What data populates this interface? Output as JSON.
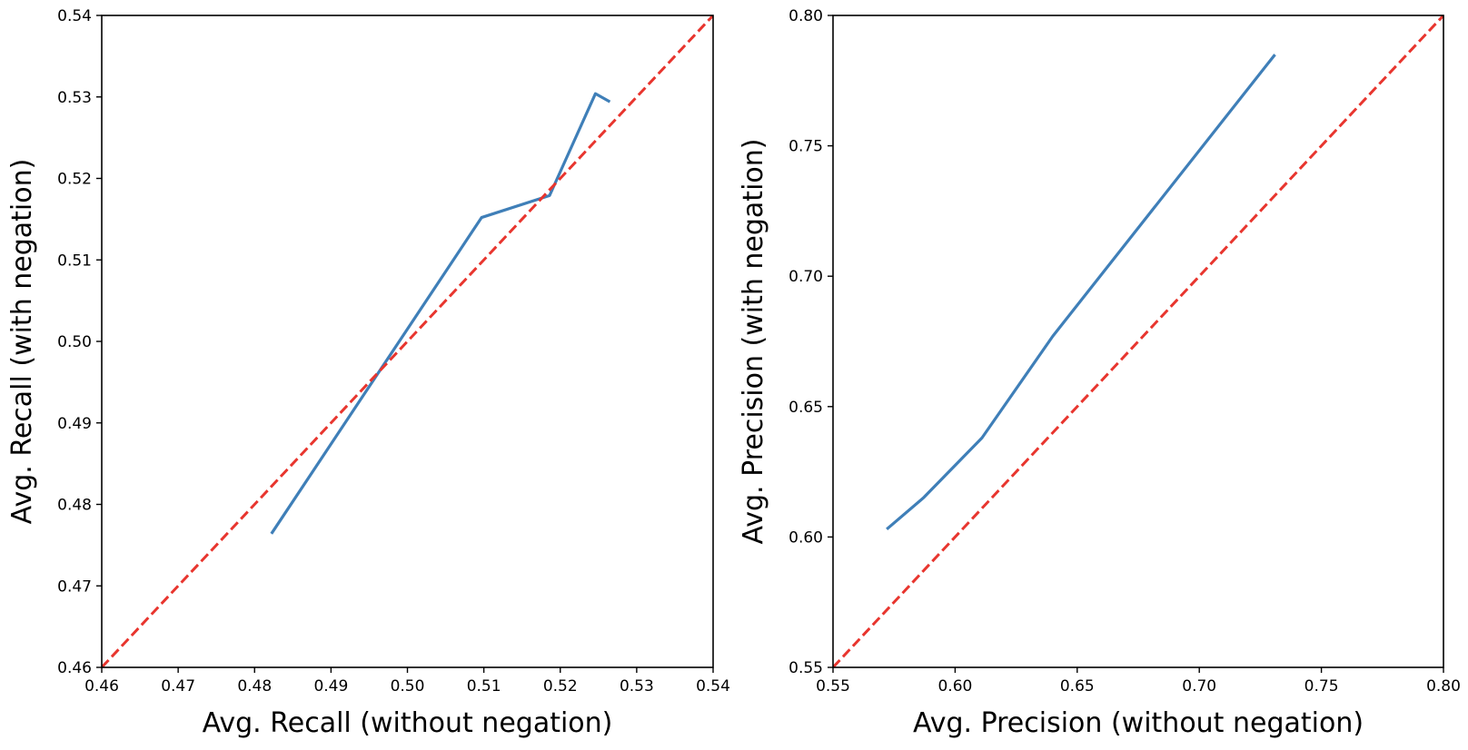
{
  "chart_data": [
    {
      "type": "line",
      "xlabel": "Avg. Recall (without negation)",
      "ylabel": "Avg. Recall (with negation)",
      "xlim": [
        0.46,
        0.54
      ],
      "ylim": [
        0.46,
        0.54
      ],
      "xticks": [
        "0.46",
        "0.47",
        "0.48",
        "0.49",
        "0.50",
        "0.51",
        "0.52",
        "0.53",
        "0.54"
      ],
      "yticks": [
        "0.46",
        "0.47",
        "0.48",
        "0.49",
        "0.50",
        "0.51",
        "0.52",
        "0.53",
        "0.54"
      ],
      "grid": false,
      "series": [
        {
          "color": "#3f7fb8",
          "style": "solid",
          "x": [
            0.4822,
            0.5097,
            0.5186,
            0.5246,
            0.5265
          ],
          "y": [
            0.4764,
            0.5152,
            0.5179,
            0.5304,
            0.5294
          ]
        },
        {
          "color": "#e8352e",
          "style": "dashed",
          "x": [
            0.46,
            0.54
          ],
          "y": [
            0.46,
            0.54
          ]
        }
      ]
    },
    {
      "type": "line",
      "xlabel": "Avg. Precision (without negation)",
      "ylabel": "Avg. Precision (with negation)",
      "xlim": [
        0.55,
        0.8
      ],
      "ylim": [
        0.55,
        0.8
      ],
      "xticks": [
        "0.55",
        "0.60",
        "0.65",
        "0.70",
        "0.75",
        "0.80"
      ],
      "yticks": [
        "0.55",
        "0.60",
        "0.65",
        "0.70",
        "0.75",
        "0.80"
      ],
      "grid": false,
      "series": [
        {
          "color": "#3f7fb8",
          "style": "solid",
          "x": [
            0.572,
            0.587,
            0.611,
            0.64,
            0.731
          ],
          "y": [
            0.603,
            0.615,
            0.638,
            0.677,
            0.785
          ]
        },
        {
          "color": "#e8352e",
          "style": "dashed",
          "x": [
            0.55,
            0.8
          ],
          "y": [
            0.55,
            0.8
          ]
        }
      ]
    }
  ]
}
